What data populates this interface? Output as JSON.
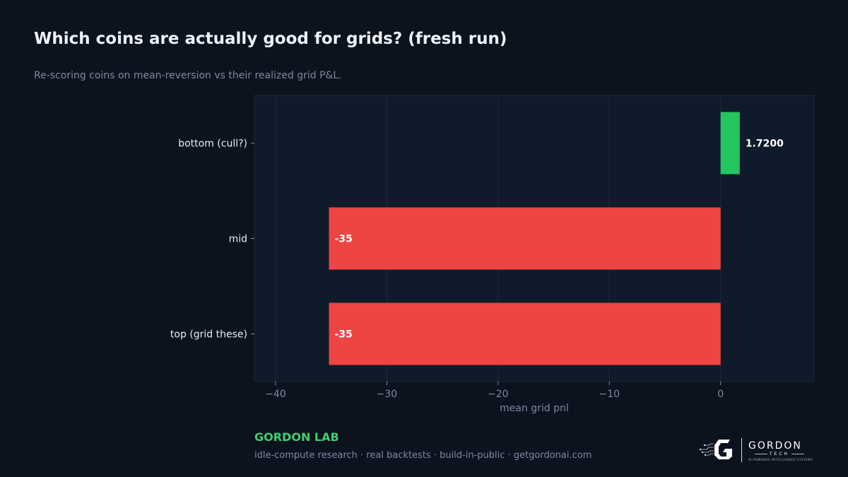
{
  "header": {
    "title": "Which coins are actually good for grids? (fresh run)",
    "subtitle": "Re-scoring coins on mean-reversion vs their realized grid P&L."
  },
  "chart_data": {
    "type": "bar",
    "orientation": "horizontal",
    "categories": [
      "bottom (cull?)",
      "mid",
      "top (grid these)"
    ],
    "values": [
      1.72,
      -35.2,
      -35.2
    ],
    "data_labels": [
      "1.7200",
      "-35",
      "-35"
    ],
    "bar_colors": [
      "#22c55e",
      "#ef4444",
      "#ef4444"
    ],
    "xlabel": "mean grid pnl",
    "ylabel": "",
    "xlim": [
      -41.9,
      8.4
    ],
    "xticks": [
      -40,
      -30,
      -20,
      -10,
      0
    ],
    "xtick_labels": [
      "−40",
      "−30",
      "−20",
      "−10",
      "0"
    ],
    "grid": "vertical"
  },
  "footer": {
    "lab_name": "GORDON LAB",
    "tagline": "idle-compute research · real backtests · build-in-public · getgordonai.com",
    "logo_wordmark": "GORDON",
    "logo_sub": "TECH",
    "logo_tagline": "AI-POWERED INTELLIGENCE SYSTEMS"
  },
  "colors": {
    "background": "#0c121e",
    "plot_background": "#0f1b2a",
    "positive": "#22c55e",
    "negative": "#ef4444",
    "accent": "#3ecf6e",
    "muted_text": "#7d8aa0"
  }
}
